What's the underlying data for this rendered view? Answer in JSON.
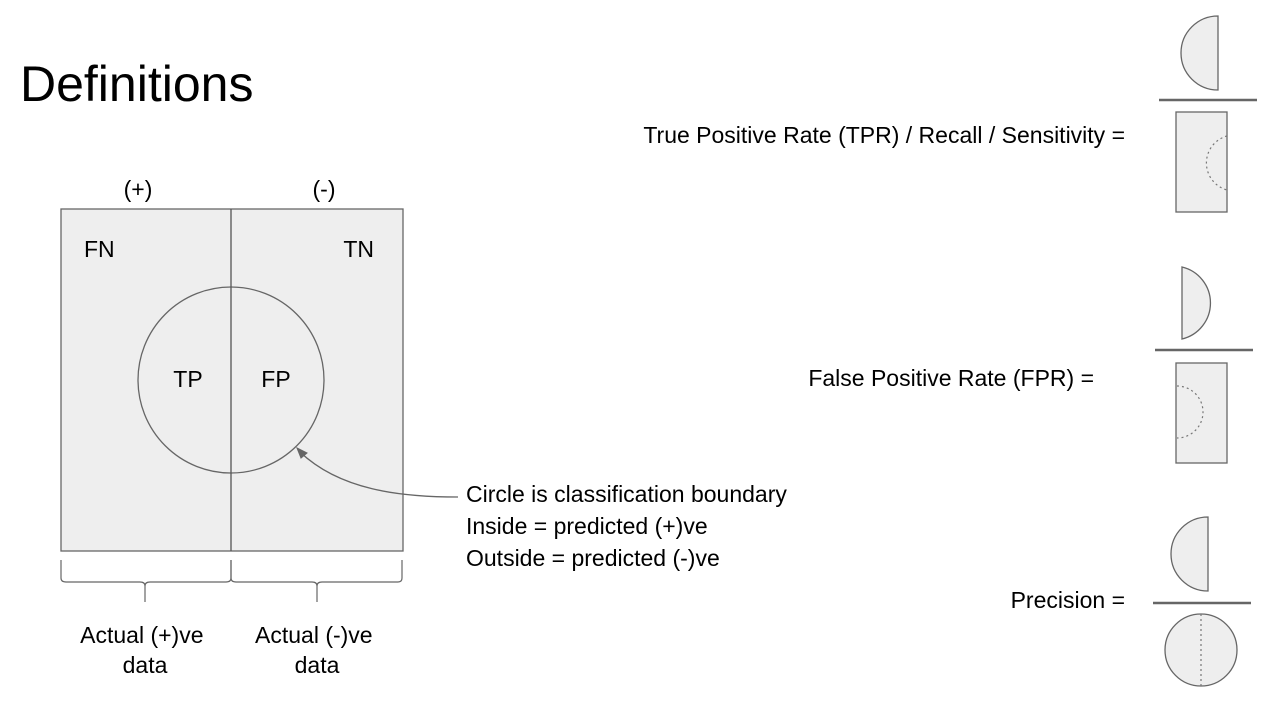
{
  "title": "Definitions",
  "colors": {
    "fill": "#eeeeee",
    "stroke": "#666666",
    "divider": "#555555",
    "dotted": "#777777"
  },
  "confusion": {
    "positive_header": "(+)",
    "negative_header": "(-)",
    "fn": "FN",
    "tn": "TN",
    "tp": "TP",
    "fp": "FP"
  },
  "bottom_labels": {
    "left": [
      "Actual (+)ve",
      "data"
    ],
    "right": [
      "Actual (-)ve",
      "data"
    ]
  },
  "annotation": {
    "lines": [
      "Circle is classification boundary",
      "Inside = predicted (+)ve",
      "Outside = predicted (-)ve"
    ]
  },
  "formulas": {
    "tpr_label": "True Positive Rate (TPR) / Recall / Sensitivity =",
    "fpr_label": "False Positive Rate (FPR) =",
    "precision_label": "Precision ="
  }
}
